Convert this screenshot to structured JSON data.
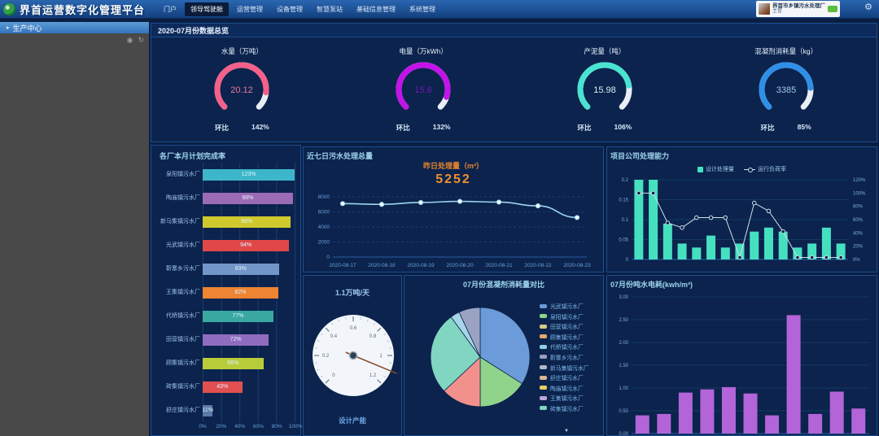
{
  "topbar": {
    "title": "界首运营数字化管理平台",
    "menu": [
      "门户",
      "领导驾驶舱",
      "运营管理",
      "设备管理",
      "智慧泵站",
      "基础信息管理",
      "系统管理"
    ],
    "active": "领导驾驶舱",
    "user": {
      "org": "界首市乡镇污水处理厂",
      "role": "主管"
    }
  },
  "sidebar": {
    "header": "生产中心"
  },
  "overview": {
    "title": "2020-07月份数据总览",
    "gauges": [
      {
        "label": "水量（万吨）",
        "value": "20.12",
        "ratio_label": "环比",
        "ratio": "142%",
        "color": "#f4608a",
        "value_color": "#e87a9a",
        "fraction": 0.86
      },
      {
        "label": "电量（万kWh）",
        "value": "15.6",
        "ratio_label": "环比",
        "ratio": "132%",
        "color": "#c214e8",
        "value_color": "#7a18b0",
        "fraction": 0.9
      },
      {
        "label": "产泥量（吨）",
        "value": "15.98",
        "ratio_label": "环比",
        "ratio": "106%",
        "color": "#49e3d2",
        "value_color": "#d8f0f0",
        "fraction": 0.8
      },
      {
        "label": "混凝剂消耗量（kg）",
        "value": "3385",
        "ratio_label": "环比",
        "ratio": "85%",
        "color": "#2f8fe8",
        "value_color": "#9fc8e8",
        "fraction": 0.82
      }
    ]
  },
  "chart_data": [
    {
      "id": "plan-completion",
      "type": "bar",
      "orientation": "horizontal",
      "title": "各厂本月计划完成率",
      "categories": [
        "泉阳镇污水厂",
        "陶庙镇污水厂",
        "新马集镇污水厂",
        "光武镇污水厂",
        "靳寨乡污水厂",
        "王集镇污水厂",
        "代桥镇污水厂",
        "田营镇污水厂",
        "顾集镇污水厂",
        "砖集镇污水厂",
        "舒庄镇污水厂"
      ],
      "values": [
        123,
        98,
        96,
        94,
        83,
        82,
        77,
        72,
        66,
        43,
        11
      ],
      "labels": [
        "123%",
        "98%",
        "96%",
        "94%",
        "83%",
        "82%",
        "77%",
        "72%",
        "66%",
        "43%",
        "11%"
      ],
      "colors": [
        "#3db6c9",
        "#9c6bb5",
        "#cfc92e",
        "#e04848",
        "#7396c8",
        "#ef8432",
        "#38a8a0",
        "#8f6cc0",
        "#b8cc3a",
        "#e05050",
        "#5a7ba6"
      ],
      "xticks": [
        "0%",
        "20%",
        "40%",
        "60%",
        "80%",
        "100%"
      ],
      "xmax": 100
    },
    {
      "id": "seven-day",
      "type": "line",
      "title": "近七日污水处理总量",
      "center_label": "昨日处理量（m³）",
      "center_value": "5252",
      "x": [
        "2020-08-17",
        "2020-08-18",
        "2020-08-19",
        "2020-08-20",
        "2020-08-21",
        "2020-08-22",
        "2020-08-23"
      ],
      "values": [
        7100,
        7000,
        7250,
        7400,
        7300,
        6800,
        5252
      ],
      "yticks": [
        0,
        2000,
        4000,
        6000,
        8000
      ],
      "ymax": 8000,
      "line_color": "#9fd4ef"
    },
    {
      "id": "capacity-dial",
      "type": "gauge",
      "title": "1.1万吨/天",
      "sublabel": "设计产能",
      "min": 0,
      "max": 1.2,
      "value": 1.1,
      "tick_labels": [
        "0",
        "0.2",
        "0.4",
        "0.6",
        "0.8",
        "1",
        "1.2"
      ]
    },
    {
      "id": "coagulant-pie",
      "type": "pie",
      "title": "07月份混凝剂消耗量对比",
      "slices": [
        {
          "name": "光武镇污水厂",
          "value": 34,
          "color": "#6b9bd8"
        },
        {
          "name": "泉阳镇污水厂",
          "value": 16,
          "color": "#8fd48a"
        },
        {
          "name": "田营镇污水厂",
          "value": 13,
          "color": "#f2918c"
        },
        {
          "name": "顾集镇污水厂",
          "value": 27,
          "color": "#80d6c0"
        },
        {
          "name": "代桥镇污水厂",
          "value": 3,
          "color": "#a8d4e8"
        },
        {
          "name": "靳寨乡污水厂",
          "value": 7,
          "color": "#9aa3c2"
        }
      ],
      "legend": [
        {
          "name": "光武镇污水厂",
          "color": "#6b9bd8"
        },
        {
          "name": "泉阳镇污水厂",
          "color": "#8fd48a"
        },
        {
          "name": "田营镇污水厂",
          "color": "#d8c88a"
        },
        {
          "name": "顾集镇污水厂",
          "color": "#e8a868"
        },
        {
          "name": "代桥镇污水厂",
          "color": "#8fd0e8"
        },
        {
          "name": "靳寨乡污水厂",
          "color": "#9aa0bd"
        },
        {
          "name": "新马集镇污水厂",
          "color": "#b0b8c8"
        },
        {
          "name": "舒庄镇污水厂",
          "color": "#d8b890"
        },
        {
          "name": "陶庙镇污水厂",
          "color": "#e8d060"
        },
        {
          "name": "王集镇污水厂",
          "color": "#b8a8d8"
        },
        {
          "name": "砖集镇污水厂",
          "color": "#7fd6c0"
        }
      ]
    },
    {
      "id": "processing-capacity",
      "type": "bar-line",
      "title": "项目公司处理能力",
      "legend": [
        "设计处理量",
        "运行负荷率"
      ],
      "bar_values": [
        0.2,
        0.2,
        0.09,
        0.04,
        0.03,
        0.06,
        0.03,
        0.04,
        0.07,
        0.08,
        0.07,
        0.03,
        0.04,
        0.08,
        0.04
      ],
      "line_values": [
        100,
        100,
        55,
        48,
        63,
        63,
        63,
        3,
        85,
        73,
        42,
        3,
        3,
        3,
        3
      ],
      "left_ticks": [
        "0",
        "0.05",
        "0.1",
        "0.15",
        "0.2"
      ],
      "left_max": 0.2,
      "right_ticks": [
        "0%",
        "20%",
        "40%",
        "60%",
        "80%",
        "100%",
        "120%"
      ],
      "right_max": 120,
      "bar_color": "#45e0c0",
      "line_color": "#cfe0ea"
    },
    {
      "id": "power-consumption",
      "type": "bar",
      "orientation": "vertical",
      "title": "07月份吨水电耗(kwh/m³)",
      "values": [
        0.4,
        0.43,
        0.9,
        0.97,
        1.02,
        0.88,
        0.4,
        2.6,
        0.43,
        0.92,
        0.55
      ],
      "yticks": [
        "0.00",
        "0.50",
        "1.00",
        "1.50",
        "2.00",
        "2.50",
        "3.00"
      ],
      "ymax": 3,
      "bar_color": "#b264d8"
    }
  ]
}
